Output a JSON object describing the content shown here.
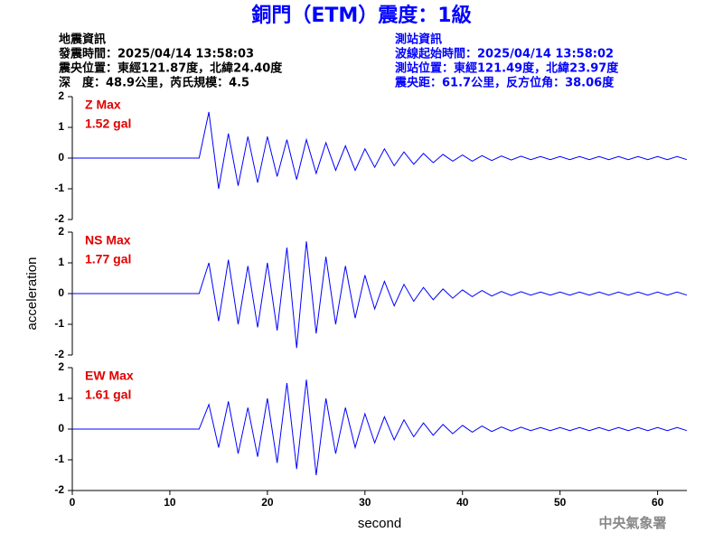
{
  "title": "銅門（ETM）震度：1級",
  "event_info": [
    "地震資訊",
    "發震時間：2025/04/14 13:58:03",
    "震央位置：東經121.87度，北緯24.40度",
    "深　度：48.9公里，芮氏規模：4.5"
  ],
  "station_info": [
    "測站資訊",
    "波線起始時間：2025/04/14 13:58:02",
    "測站位置：東經121.49度，北緯23.97度",
    "震央距：61.7公里，反方位角：38.06度"
  ],
  "ylabel": "acceleration",
  "footer": "中央氣象署",
  "chart_data": [
    {
      "type": "line",
      "title": "Z Max",
      "subtitle": "1.52 gal",
      "xlim": [
        0,
        63
      ],
      "ylim": [
        -2,
        2
      ],
      "yticks": [
        -2,
        -1,
        0,
        1,
        2
      ],
      "x": [
        0,
        1,
        2,
        3,
        4,
        5,
        6,
        7,
        8,
        9,
        10,
        11,
        12,
        13,
        14,
        15,
        16,
        17,
        18,
        19,
        20,
        21,
        22,
        23,
        24,
        25,
        26,
        27,
        28,
        29,
        30,
        31,
        32,
        33,
        34,
        35,
        36,
        37,
        38,
        39,
        40,
        41,
        42,
        43,
        44,
        45,
        46,
        47,
        48,
        49,
        50,
        51,
        52,
        53,
        54,
        55,
        56,
        57,
        58,
        59,
        60,
        61,
        62,
        63
      ],
      "series": [
        {
          "color": "#0000ff",
          "values": [
            0,
            0,
            0,
            0,
            0,
            0,
            0,
            0,
            0,
            0,
            0,
            0,
            0,
            0,
            1.5,
            -1.0,
            0.8,
            -0.9,
            0.7,
            -0.8,
            0.7,
            -0.6,
            0.6,
            -0.7,
            0.6,
            -0.5,
            0.5,
            -0.4,
            0.4,
            -0.4,
            0.3,
            -0.3,
            0.3,
            -0.25,
            0.2,
            -0.2,
            0.15,
            -0.15,
            0.12,
            -0.1,
            0.1,
            -0.1,
            0.08,
            -0.08,
            0.07,
            -0.06,
            0.06,
            -0.05,
            0.05,
            -0.05,
            0.05,
            -0.05,
            0.05,
            -0.05,
            0.05,
            -0.05,
            0.05,
            -0.05,
            0.05,
            -0.05,
            0.05,
            -0.05,
            0.05,
            -0.05
          ]
        }
      ]
    },
    {
      "type": "line",
      "title": "NS Max",
      "subtitle": "1.77 gal",
      "xlim": [
        0,
        63
      ],
      "ylim": [
        -2,
        2
      ],
      "yticks": [
        -2,
        -1,
        0,
        1,
        2
      ],
      "x": [
        0,
        1,
        2,
        3,
        4,
        5,
        6,
        7,
        8,
        9,
        10,
        11,
        12,
        13,
        14,
        15,
        16,
        17,
        18,
        19,
        20,
        21,
        22,
        23,
        24,
        25,
        26,
        27,
        28,
        29,
        30,
        31,
        32,
        33,
        34,
        35,
        36,
        37,
        38,
        39,
        40,
        41,
        42,
        43,
        44,
        45,
        46,
        47,
        48,
        49,
        50,
        51,
        52,
        53,
        54,
        55,
        56,
        57,
        58,
        59,
        60,
        61,
        62,
        63
      ],
      "series": [
        {
          "color": "#0000ff",
          "values": [
            0,
            0,
            0,
            0,
            0,
            0,
            0,
            0,
            0,
            0,
            0,
            0,
            0,
            0,
            1.0,
            -0.9,
            1.1,
            -1.0,
            0.9,
            -1.1,
            1.0,
            -1.2,
            1.5,
            -1.77,
            1.7,
            -1.3,
            1.2,
            -1.0,
            0.9,
            -0.8,
            0.6,
            -0.5,
            0.4,
            -0.4,
            0.3,
            -0.25,
            0.2,
            -0.2,
            0.15,
            -0.15,
            0.12,
            -0.1,
            0.1,
            -0.08,
            0.07,
            -0.06,
            0.06,
            -0.05,
            0.05,
            -0.05,
            0.05,
            -0.05,
            0.05,
            -0.05,
            0.05,
            -0.05,
            0.05,
            -0.05,
            0.05,
            -0.05,
            0.05,
            -0.05,
            0.05,
            -0.05
          ]
        }
      ]
    },
    {
      "type": "line",
      "title": "EW Max",
      "subtitle": "1.61 gal",
      "xlabel": "second",
      "xlim": [
        0,
        63
      ],
      "xticks": [
        0,
        10,
        20,
        30,
        40,
        50,
        60
      ],
      "ylim": [
        -2,
        2
      ],
      "yticks": [
        -2,
        -1,
        0,
        1,
        2
      ],
      "x": [
        0,
        1,
        2,
        3,
        4,
        5,
        6,
        7,
        8,
        9,
        10,
        11,
        12,
        13,
        14,
        15,
        16,
        17,
        18,
        19,
        20,
        21,
        22,
        23,
        24,
        25,
        26,
        27,
        28,
        29,
        30,
        31,
        32,
        33,
        34,
        35,
        36,
        37,
        38,
        39,
        40,
        41,
        42,
        43,
        44,
        45,
        46,
        47,
        48,
        49,
        50,
        51,
        52,
        53,
        54,
        55,
        56,
        57,
        58,
        59,
        60,
        61,
        62,
        63
      ],
      "series": [
        {
          "color": "#0000ff",
          "values": [
            0,
            0,
            0,
            0,
            0,
            0,
            0,
            0,
            0,
            0,
            0,
            0,
            0,
            0,
            0.8,
            -0.6,
            0.9,
            -0.8,
            0.7,
            -0.9,
            1.0,
            -1.1,
            1.5,
            -1.3,
            1.61,
            -1.5,
            1.0,
            -0.8,
            0.7,
            -0.6,
            0.5,
            -0.45,
            0.4,
            -0.35,
            0.3,
            -0.25,
            0.2,
            -0.2,
            0.15,
            -0.15,
            0.12,
            -0.1,
            0.1,
            -0.08,
            0.07,
            -0.06,
            0.06,
            -0.05,
            0.05,
            -0.05,
            0.05,
            -0.05,
            0.05,
            -0.05,
            0.05,
            -0.05,
            0.05,
            -0.05,
            0.05,
            -0.05,
            0.05,
            -0.05,
            0.05,
            -0.05
          ]
        }
      ]
    }
  ]
}
